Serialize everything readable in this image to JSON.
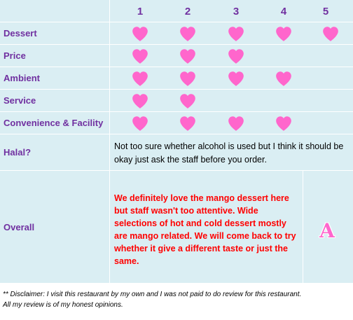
{
  "columns": [
    "1",
    "2",
    "3",
    "4",
    "5"
  ],
  "ratings": [
    {
      "label": "Dessert",
      "value": 5
    },
    {
      "label": "Price",
      "value": 3
    },
    {
      "label": "Ambient",
      "value": 4
    },
    {
      "label": "Service",
      "value": 2
    },
    {
      "label": "Convenience & Facility",
      "value": 4
    }
  ],
  "halal": {
    "label": "Halal?",
    "text": "Not too sure whether alcohol is used but I think it should be okay just ask the staff before you order."
  },
  "overall": {
    "label": "Overall",
    "text": "We definitely love the mango dessert here but staff wasn't too attentive. Wide selections of hot and cold dessert mostly are mango related. We will come back to try whether it give a different taste or just the same.",
    "grade": "A"
  },
  "disclaimer": {
    "line1": "** Disclaimer: I visit this restaurant by my own and I was not paid to do review for this restaurant.",
    "line2": "All my review is of my honest opinions."
  },
  "colors": {
    "heart": "#ff66cc",
    "label": "#7030a0",
    "table_bg": "#daeef3",
    "overall_text": "#ff0000"
  },
  "icon": "heart-icon"
}
